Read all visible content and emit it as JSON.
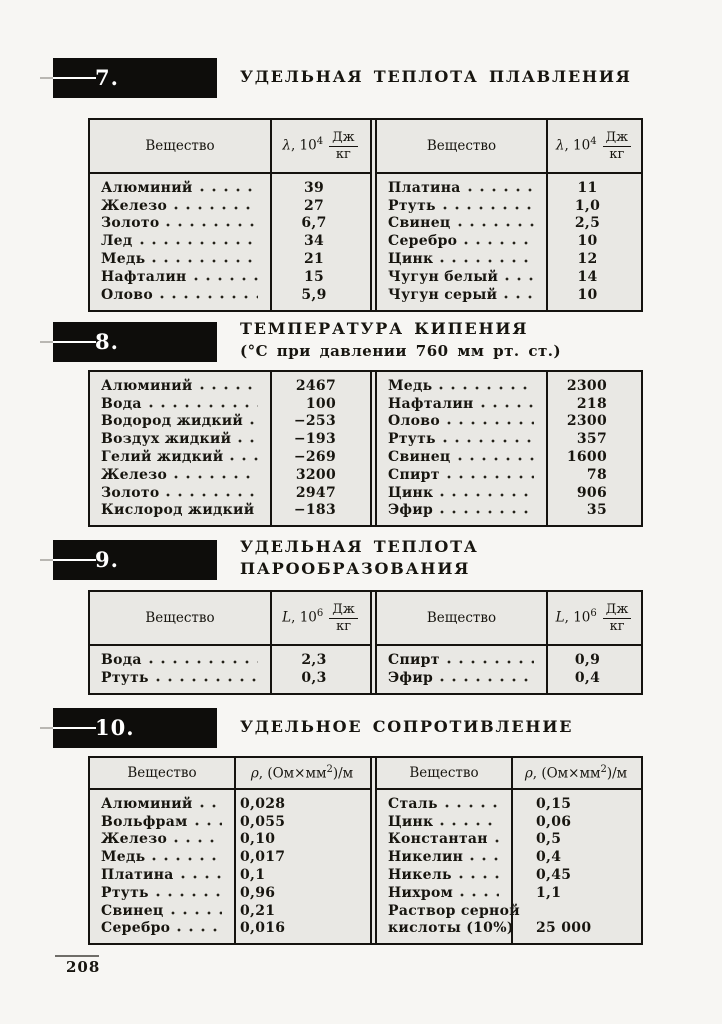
{
  "page_number": "208",
  "colors": {
    "ink": "#15130f",
    "paper": "#f7f6f3",
    "table_fill": "#e9e8e4",
    "badge_bg": "#0e0d0b",
    "badge_text": "#ffffff"
  },
  "sections": [
    {
      "badge": "7.",
      "title_lines": [
        "УДЕЛЬНАЯ ТЕПЛОТА ПЛАВЛЕНИЯ"
      ],
      "col_header": {
        "substance": "Вещество",
        "symbol": "λ",
        "rest": ", 10",
        "exponent": "4",
        "unit_num": "Дж",
        "unit_den": "кг"
      },
      "left_rows": [
        {
          "n": "Алюминий",
          "v": "39"
        },
        {
          "n": "Железо",
          "v": "27"
        },
        {
          "n": "Золото",
          "v": "6,7"
        },
        {
          "n": "Лед",
          "v": "34"
        },
        {
          "n": "Медь",
          "v": "21"
        },
        {
          "n": "Нафталин",
          "v": "15"
        },
        {
          "n": "Олово",
          "v": "5,9"
        }
      ],
      "right_rows": [
        {
          "n": "Платина",
          "v": "11"
        },
        {
          "n": "Ртуть",
          "v": "1,0"
        },
        {
          "n": "Свинец",
          "v": "2,5"
        },
        {
          "n": "Серебро",
          "v": "10"
        },
        {
          "n": "Цинк",
          "v": "12"
        },
        {
          "n": "Чугун белый",
          "v": "14"
        },
        {
          "n": "Чугун серый",
          "v": "10"
        }
      ]
    },
    {
      "badge": "8.",
      "title_lines": [
        "ТЕМПЕРАТУРА КИПЕНИЯ",
        "(°С при давлении 760 мм рт. ст.)"
      ],
      "left_rows": [
        {
          "n": "Алюминий",
          "v": "2467"
        },
        {
          "n": "Вода",
          "v": "100"
        },
        {
          "n": "Водород жидкий",
          "v": "−253"
        },
        {
          "n": "Воздух жидкий",
          "v": "−193"
        },
        {
          "n": "Гелий жидкий",
          "v": "−269"
        },
        {
          "n": "Железо",
          "v": "3200"
        },
        {
          "n": "Золото",
          "v": "2947"
        },
        {
          "n": "Кислород жидкий",
          "v": "−183"
        }
      ],
      "right_rows": [
        {
          "n": "Медь",
          "v": "2300"
        },
        {
          "n": "Нафталин",
          "v": "218"
        },
        {
          "n": "Олово",
          "v": "2300"
        },
        {
          "n": "Ртуть",
          "v": "357"
        },
        {
          "n": "Свинец",
          "v": "1600"
        },
        {
          "n": "Спирт",
          "v": "78"
        },
        {
          "n": "Цинк",
          "v": "906"
        },
        {
          "n": "Эфир",
          "v": "35"
        }
      ]
    },
    {
      "badge": "9.",
      "title_lines": [
        "УДЕЛЬНАЯ ТЕПЛОТА",
        "ПАРООБРАЗОВАНИЯ"
      ],
      "col_header": {
        "substance": "Вещество",
        "symbol": "L",
        "rest": ", 10",
        "exponent": "6",
        "unit_num": "Дж",
        "unit_den": "кг"
      },
      "left_rows": [
        {
          "n": "Вода",
          "v": "2,3"
        },
        {
          "n": "Ртуть",
          "v": "0,3"
        }
      ],
      "right_rows": [
        {
          "n": "Спирт",
          "v": "0,9"
        },
        {
          "n": "Эфир",
          "v": "0,4"
        }
      ]
    },
    {
      "badge": "10.",
      "title_lines": [
        "УДЕЛЬНОЕ СОПРОТИВЛЕНИЕ"
      ],
      "col_header": {
        "substance": "Вещество",
        "symbol": "ρ",
        "rest": ", (Ом×мм",
        "exponent": "2",
        "post": ")/м"
      },
      "left_rows": [
        {
          "n": "Алюминий",
          "v": "0,028"
        },
        {
          "n": "Вольфрам",
          "v": "0,055"
        },
        {
          "n": "Железо",
          "v": "0,10"
        },
        {
          "n": "Медь",
          "v": "0,017"
        },
        {
          "n": "Платина",
          "v": "0,1"
        },
        {
          "n": "Ртуть",
          "v": "0,96"
        },
        {
          "n": "Свинец",
          "v": "0,21"
        },
        {
          "n": "Серебро",
          "v": "0,016"
        }
      ],
      "right_rows": [
        {
          "n": "Сталь",
          "v": "0,15"
        },
        {
          "n": "Цинк",
          "v": "0,06"
        },
        {
          "n": "Константан",
          "v": "0,5"
        },
        {
          "n": "Никелин",
          "v": "0,4"
        },
        {
          "n": "Никель",
          "v": "0,45"
        },
        {
          "n": "Нихром",
          "v": "1,1"
        },
        {
          "n": "Раствор серной",
          "v": "",
          "leader": false
        },
        {
          "n": "кислоты (10%)",
          "v": "25 000",
          "leader": false
        }
      ]
    }
  ]
}
